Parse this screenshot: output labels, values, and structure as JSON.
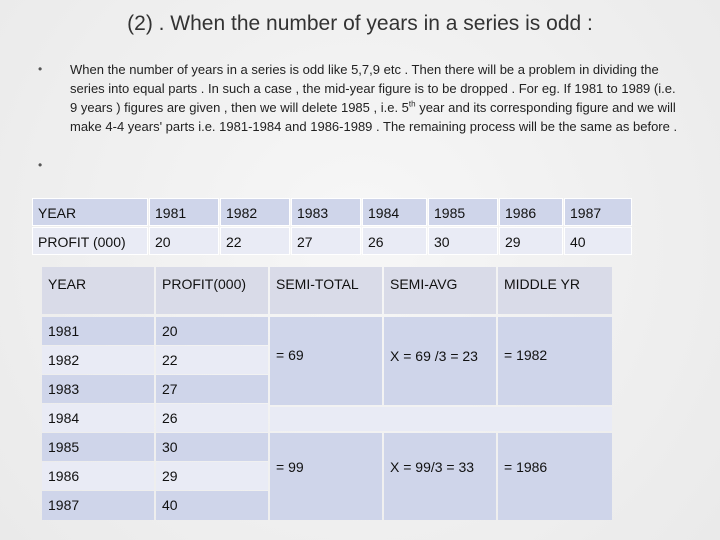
{
  "title": "(2) . When the number of years in a series is odd :",
  "bullets": {
    "first": "•",
    "second": "•",
    "text_before_sup": "When the number of years in a series is odd like 5,7,9 etc . Then there will be a problem in dividing the series into equal parts . In such a case , the mid-year figure is to be dropped . For eg. If 1981 to 1989 (i.e. 9 years ) figures are given , then we will delete 1985 , i.e. 5",
    "sup": "th",
    "text_after_sup": " year and its corresponding figure and we will make 4-4 years' parts i.e. 1981-1984 and 1986-1989 . The remaining process will be the same as before ."
  },
  "table1": {
    "row_headers": [
      "YEAR",
      "PROFIT (000)"
    ],
    "years": [
      "1981",
      "1982",
      "1983",
      "1984",
      "1985",
      "1986",
      "1987"
    ],
    "profits": [
      "20",
      "22",
      "27",
      "26",
      "30",
      "29",
      "40"
    ]
  },
  "table2": {
    "headers": [
      "YEAR",
      "PROFIT(000)",
      "SEMI-TOTAL",
      "SEMI-AVG",
      "MIDDLE YR"
    ],
    "years": [
      "1981",
      "1982",
      "1983",
      "1984",
      "1985",
      "1986",
      "1987"
    ],
    "profits": [
      "20",
      "22",
      "27",
      "26",
      "30",
      "29",
      "40"
    ],
    "group1": {
      "semi_total": "= 69",
      "semi_avg": "X = 69 /3 = 23",
      "middle_yr": "=  1982"
    },
    "group2": {
      "semi_total": "= 99",
      "semi_avg": "X = 99/3 = 33",
      "middle_yr": "=  1986"
    }
  },
  "colors": {
    "header_bg": "#d9dbe8",
    "row_blue": "#cfd5ea",
    "row_light": "#e9ebf5"
  }
}
